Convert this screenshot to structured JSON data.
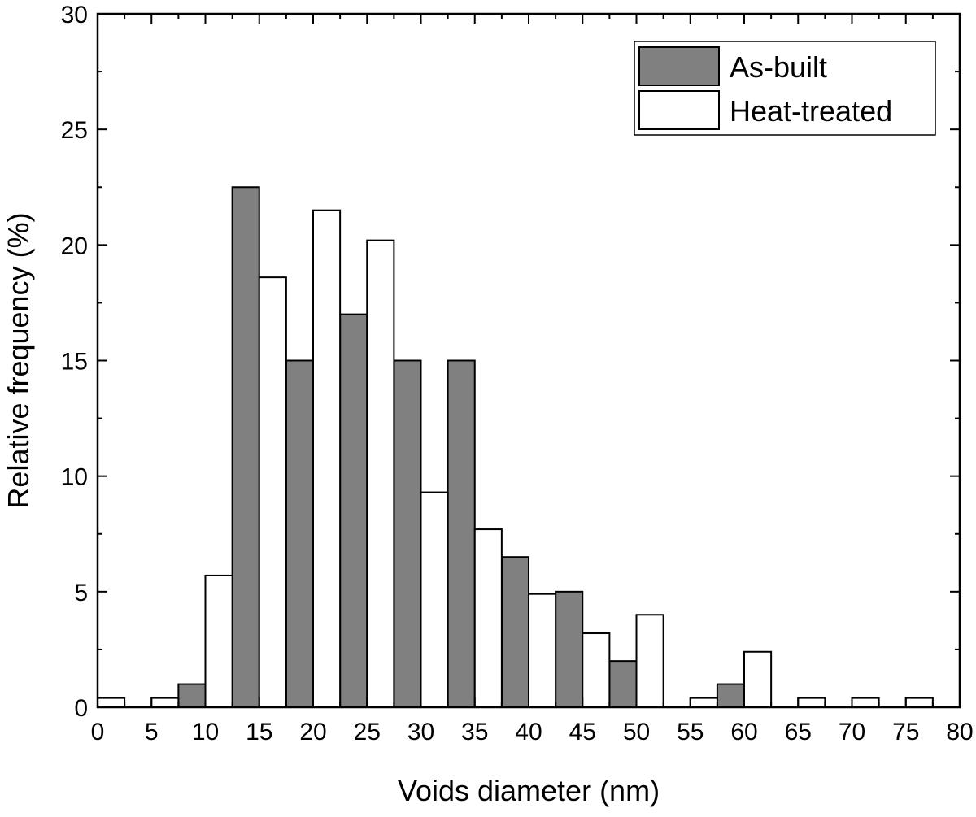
{
  "chart_data": {
    "type": "bar",
    "xlabel": "Voids diameter (nm)",
    "ylabel": "Relative frequency (%)",
    "xlim": [
      0,
      80
    ],
    "ylim": [
      0,
      30
    ],
    "x_ticks": [
      0,
      5,
      10,
      15,
      20,
      25,
      30,
      35,
      40,
      45,
      50,
      55,
      60,
      65,
      70,
      75,
      80
    ],
    "y_ticks": [
      0,
      5,
      10,
      15,
      20,
      25,
      30
    ],
    "bin_width_nm": 5,
    "grid": false,
    "legend_position": "top-right",
    "series": [
      {
        "name": "As-built",
        "color": "#808080",
        "bins": [
          {
            "x": 7.5,
            "value": 1.0
          },
          {
            "x": 12.5,
            "value": 22.5
          },
          {
            "x": 17.5,
            "value": 15.0
          },
          {
            "x": 22.5,
            "value": 17.0
          },
          {
            "x": 27.5,
            "value": 15.0
          },
          {
            "x": 32.5,
            "value": 15.0
          },
          {
            "x": 37.5,
            "value": 6.5
          },
          {
            "x": 42.5,
            "value": 5.0
          },
          {
            "x": 47.5,
            "value": 2.0
          },
          {
            "x": 57.5,
            "value": 1.0
          }
        ]
      },
      {
        "name": "Heat-treated",
        "color": "#ffffff",
        "bins": [
          {
            "x": 2.5,
            "value": 0.4
          },
          {
            "x": 7.5,
            "value": 0.4
          },
          {
            "x": 12.5,
            "value": 5.7
          },
          {
            "x": 17.5,
            "value": 18.6
          },
          {
            "x": 22.5,
            "value": 21.5
          },
          {
            "x": 27.5,
            "value": 20.2
          },
          {
            "x": 32.5,
            "value": 9.3
          },
          {
            "x": 37.5,
            "value": 7.7
          },
          {
            "x": 42.5,
            "value": 4.9
          },
          {
            "x": 47.5,
            "value": 3.2
          },
          {
            "x": 52.5,
            "value": 4.0
          },
          {
            "x": 57.5,
            "value": 0.4
          },
          {
            "x": 62.5,
            "value": 2.4
          },
          {
            "x": 67.5,
            "value": 0.4
          },
          {
            "x": 72.5,
            "value": 0.4
          },
          {
            "x": 77.5,
            "value": 0.4
          }
        ]
      }
    ]
  }
}
